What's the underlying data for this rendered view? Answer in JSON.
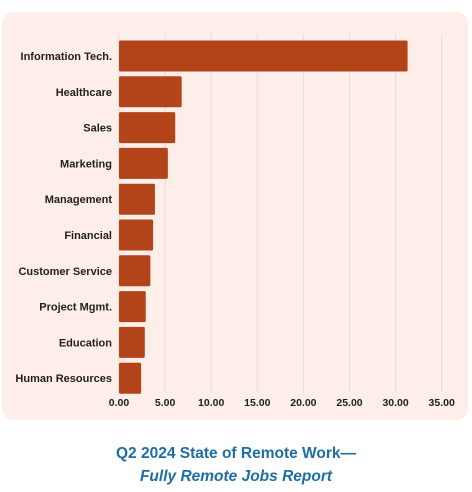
{
  "chart_data": {
    "type": "bar",
    "orientation": "horizontal",
    "categories": [
      "Information Tech.",
      "Healthcare",
      "Sales",
      "Marketing",
      "Management",
      "Financial",
      "Customer Service",
      "Project Mgmt.",
      "Education",
      "Human Resources"
    ],
    "values": [
      31.3,
      6.8,
      6.1,
      5.3,
      3.9,
      3.7,
      3.4,
      2.9,
      2.8,
      2.4
    ],
    "xlim": [
      0,
      35
    ],
    "xticks": [
      "0.00",
      "5.00",
      "10.00",
      "15.00",
      "20.00",
      "25.00",
      "30.00",
      "35.00"
    ],
    "xtick_values": [
      0,
      5,
      10,
      15,
      20,
      25,
      30,
      35
    ],
    "grid": "vertical",
    "colors": {
      "bar": "#b3441a",
      "panel_background": "#fdeee9",
      "gridline": "#f2d6cc",
      "footer_text": "#1c6ea4"
    }
  },
  "footer": {
    "title": "Q2 2024 State of Remote Work—",
    "subtitle": "Fully Remote Jobs Report"
  }
}
